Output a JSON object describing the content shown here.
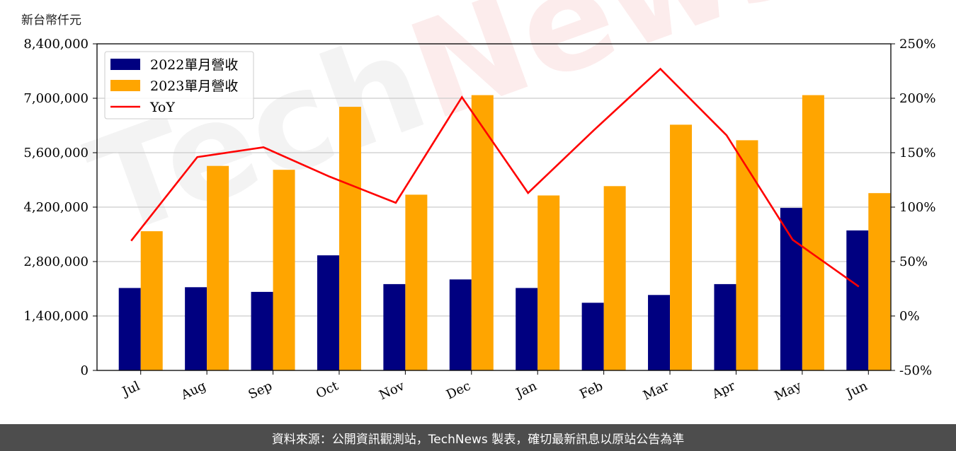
{
  "unit_label": "新台幣仟元",
  "footer_text": "資料來源：公開資訊觀測站，TechNews 製表，確切最新訊息以原站公告為準",
  "watermark": {
    "part1": "Tech",
    "part2": "News"
  },
  "colors": {
    "series_2022": "#000080",
    "series_2023": "#ffa500",
    "yoy": "#ff0000",
    "grid": "#cccccc"
  },
  "chart_data": {
    "type": "bar",
    "categories": [
      "Jul",
      "Aug",
      "Sep",
      "Oct",
      "Nov",
      "Dec",
      "Jan",
      "Feb",
      "Mar",
      "Apr",
      "May",
      "Jun"
    ],
    "series": [
      {
        "name": "2022單月營收",
        "type": "bar",
        "values": [
          2120000,
          2140000,
          2020000,
          2960000,
          2220000,
          2340000,
          2120000,
          1740000,
          1940000,
          2220000,
          4180000,
          3600000
        ]
      },
      {
        "name": "2023單月營收",
        "type": "bar",
        "values": [
          3580000,
          5260000,
          5160000,
          6780000,
          4520000,
          7080000,
          4500000,
          4740000,
          6320000,
          5920000,
          7080000,
          4560000
        ]
      },
      {
        "name": "YoY",
        "type": "line",
        "axis": "right",
        "values": [
          69,
          146,
          155,
          128,
          104,
          201,
          113,
          171,
          227,
          166,
          70,
          27
        ]
      }
    ],
    "y_left": {
      "lim": [
        0,
        8400000
      ],
      "ticks": [
        "0",
        "1,400,000",
        "2,800,000",
        "4,200,000",
        "5,600,000",
        "7,000,000",
        "8,400,000"
      ]
    },
    "y_right": {
      "lim": [
        -50,
        250
      ],
      "ticks": [
        "-50%",
        "0%",
        "50%",
        "100%",
        "150%",
        "200%",
        "250%"
      ]
    },
    "grid": true,
    "legend_position": "top-left"
  }
}
